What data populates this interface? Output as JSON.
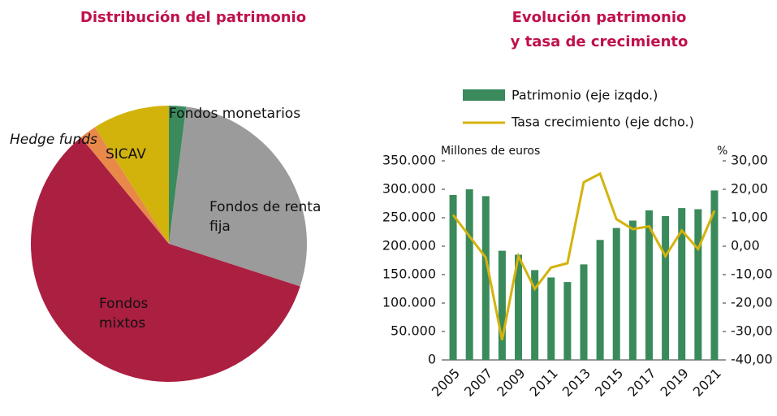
{
  "chart_data": [
    {
      "type": "pie",
      "title": "Distribución del patrimonio",
      "categories": [
        "Fondos monetarios",
        "Fondos de renta fija",
        "Fondos mixtos",
        "Hedge funds",
        "SICAV"
      ],
      "values": [
        2,
        28,
        59,
        2,
        9
      ],
      "colors": [
        "#3a8a5c",
        "#9b9b9b",
        "#ab1f41",
        "#e8894a",
        "#d2b30c"
      ]
    },
    {
      "type": "bar_line",
      "title": [
        "Evolución patrimonio",
        "y tasa de crecimiento"
      ],
      "y_label": "Millones de euros",
      "y2_label": "%",
      "categories": [
        "2005",
        null,
        "2007",
        null,
        "2009",
        null,
        "2011",
        null,
        "2013",
        null,
        "2015",
        null,
        "2017",
        null,
        "2019",
        null,
        "2021"
      ],
      "series": [
        {
          "name": "Patrimonio (eje izqdo.)",
          "color": "#3a8a5c",
          "kind": "bar",
          "values": [
            290000,
            300000,
            288000,
            192000,
            185000,
            158000,
            145000,
            137000,
            168000,
            211000,
            232000,
            245000,
            263000,
            253000,
            267000,
            265000,
            298000
          ]
        },
        {
          "name": "Tasa crecimiento (eje dcho.)",
          "color": "#d4b30c",
          "kind": "line",
          "axis": "y2",
          "values": [
            11,
            3.5,
            -4,
            -33,
            -3.5,
            -15,
            -7.5,
            -6,
            22.5,
            25.5,
            9.5,
            6,
            7,
            -3.5,
            5.5,
            -1,
            12.5
          ]
        }
      ],
      "ylim": [
        0,
        350000
      ],
      "yticks": [
        0,
        {
          "value": 50000,
          "label": "50.000"
        },
        {
          "value": 100000,
          "label": "100.000"
        },
        {
          "value": 150000,
          "label": "150.000"
        },
        {
          "value": 200000,
          "label": "200.000"
        },
        {
          "value": 250000,
          "label": "250.000"
        },
        {
          "value": 300000,
          "label": "300.000"
        },
        {
          "value": 350000,
          "label": "350.000"
        }
      ],
      "y2lim": [
        -40,
        30
      ],
      "y2ticks": [
        {
          "value": -40,
          "label": "-40,00"
        },
        {
          "value": -30,
          "label": "-30,00"
        },
        {
          "value": -20,
          "label": "-20,00"
        },
        {
          "value": -10,
          "label": "-10,00"
        },
        {
          "value": 0,
          "label": "0,00"
        },
        {
          "value": 10,
          "label": "10,00"
        },
        {
          "value": 20,
          "label": "20,00"
        },
        {
          "value": 30,
          "label": "30,00"
        }
      ]
    }
  ]
}
